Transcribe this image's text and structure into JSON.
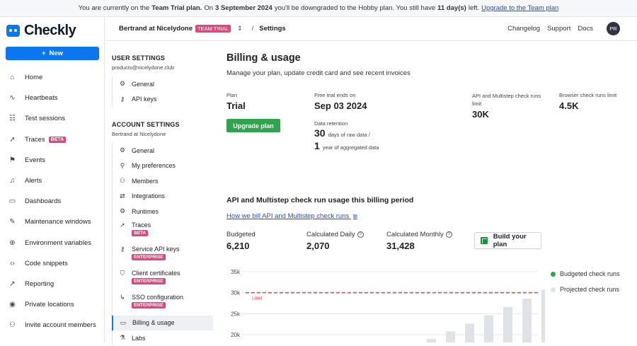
{
  "banner": {
    "pre": "You are currently on the",
    "plan": "Team Trial plan.",
    "on": "On",
    "date": "3 September 2024",
    "mid": "you'll be downgraded to the Hobby plan. You still have",
    "days": "11 day(s)",
    "left": "left.",
    "link": "Upgrade to the Team plan"
  },
  "sidebar": {
    "logo": "Checkly",
    "new_label": "New",
    "items": [
      {
        "label": "Home",
        "icon": "home-icon",
        "glyph": "⌂"
      },
      {
        "label": "Heartbeats",
        "icon": "pulse-icon",
        "glyph": "∿"
      },
      {
        "label": "Test sessions",
        "icon": "list-icon",
        "glyph": "☷"
      },
      {
        "label": "Traces",
        "icon": "rocket-icon",
        "glyph": "➚",
        "badge": "BETA"
      },
      {
        "label": "Events",
        "icon": "flag-icon",
        "glyph": "⚑"
      },
      {
        "label": "Alerts",
        "icon": "bell-icon",
        "glyph": "♫"
      },
      {
        "label": "Dashboards",
        "icon": "monitor-icon",
        "glyph": "▭"
      },
      {
        "label": "Maintenance windows",
        "icon": "wrench-icon",
        "glyph": "✎"
      },
      {
        "label": "Environment variables",
        "icon": "globe-icon",
        "glyph": "⊕"
      },
      {
        "label": "Code snippets",
        "icon": "code-icon",
        "glyph": "‹›"
      },
      {
        "label": "Reporting",
        "icon": "chart-icon",
        "glyph": "↗"
      },
      {
        "label": "Private locations",
        "icon": "pin-icon",
        "glyph": "◉"
      },
      {
        "label": "Invite account members",
        "icon": "user-plus-icon",
        "glyph": "⚇"
      }
    ]
  },
  "topbar": {
    "org": "Bertrand at Nicelydone",
    "org_badge": "TEAM TRIAL",
    "separator": "/",
    "crumb": "Settings",
    "links": [
      "Changelog",
      "Support",
      "Docs"
    ],
    "avatar": "PR"
  },
  "settings_nav": {
    "user_title": "USER SETTINGS",
    "user_email": "products@nicelydone.club",
    "user_items": [
      {
        "label": "General",
        "glyph": "⚙"
      },
      {
        "label": "API keys",
        "glyph": "⚷"
      }
    ],
    "account_title": "ACCOUNT SETTINGS",
    "account_org": "Bertrand at Nicelydone",
    "account_items": [
      {
        "label": "General",
        "glyph": "⚙"
      },
      {
        "label": "My preferences",
        "glyph": "⚲"
      },
      {
        "label": "Members",
        "glyph": "⚇"
      },
      {
        "label": "Integrations",
        "glyph": "⇄"
      },
      {
        "label": "Runtimes",
        "glyph": "⚙"
      },
      {
        "label": "Traces",
        "glyph": "➚",
        "badge": "BETA"
      },
      {
        "label": "Service API keys",
        "glyph": "⚷",
        "badge": "ENTERPRISE"
      },
      {
        "label": "Client certificates",
        "glyph": "⛉",
        "badge": "ENTERPRISE"
      },
      {
        "label": "SSO configuration",
        "glyph": "↳",
        "badge": "ENTERPRISE"
      },
      {
        "label": "Billing & usage",
        "glyph": "▭",
        "active": true
      },
      {
        "label": "Labs",
        "glyph": "⚗"
      }
    ]
  },
  "main": {
    "title": "Billing & usage",
    "subtitle": "Manage your plan, update credit card and see recent invoices",
    "plan_label": "Plan",
    "plan_value": "Trial",
    "upgrade_label": "Upgrade plan",
    "trial_label": "Free trial ends on",
    "trial_value": "Sep 03 2024",
    "retention_label": "Data retention",
    "retention_raw_num": "30",
    "retention_raw_text": "days of raw data /",
    "retention_agg_num": "1",
    "retention_agg_text": "year of aggregated data",
    "api_limit_label": "API and Multistep check runs limit",
    "api_limit_value": "30K",
    "browser_limit_label": "Browser check runs limit",
    "browser_limit_value": "4.5K",
    "usage_title": "API and Multistep check run usage this billing period",
    "bill_link": "How we bill API and Multistep check runs",
    "budgeted_label": "Budgeted",
    "budgeted_value": "6,210",
    "daily_label": "Calculated Daily",
    "daily_value": "2,070",
    "monthly_label": "Calculated Monthly",
    "monthly_value": "31,428",
    "build_label": "Build your plan"
  },
  "chart_data": {
    "type": "bar",
    "y_ticks": [
      "35k",
      "30k",
      "25k",
      "20k"
    ],
    "ylim_visible": [
      17500,
      35000
    ],
    "limit_value": 30000,
    "limit_label": "Limit",
    "series": [
      {
        "name": "Budgeted check runs",
        "color": "#2ea44f",
        "values": []
      },
      {
        "name": "Projected check runs",
        "color": "#dfe3e8",
        "values": [
          17300,
          19000,
          20800,
          22600,
          24600,
          26600,
          28600,
          30700
        ]
      }
    ],
    "colors": {
      "limit": "#e5484d",
      "grid": "#e5e7eb"
    }
  }
}
